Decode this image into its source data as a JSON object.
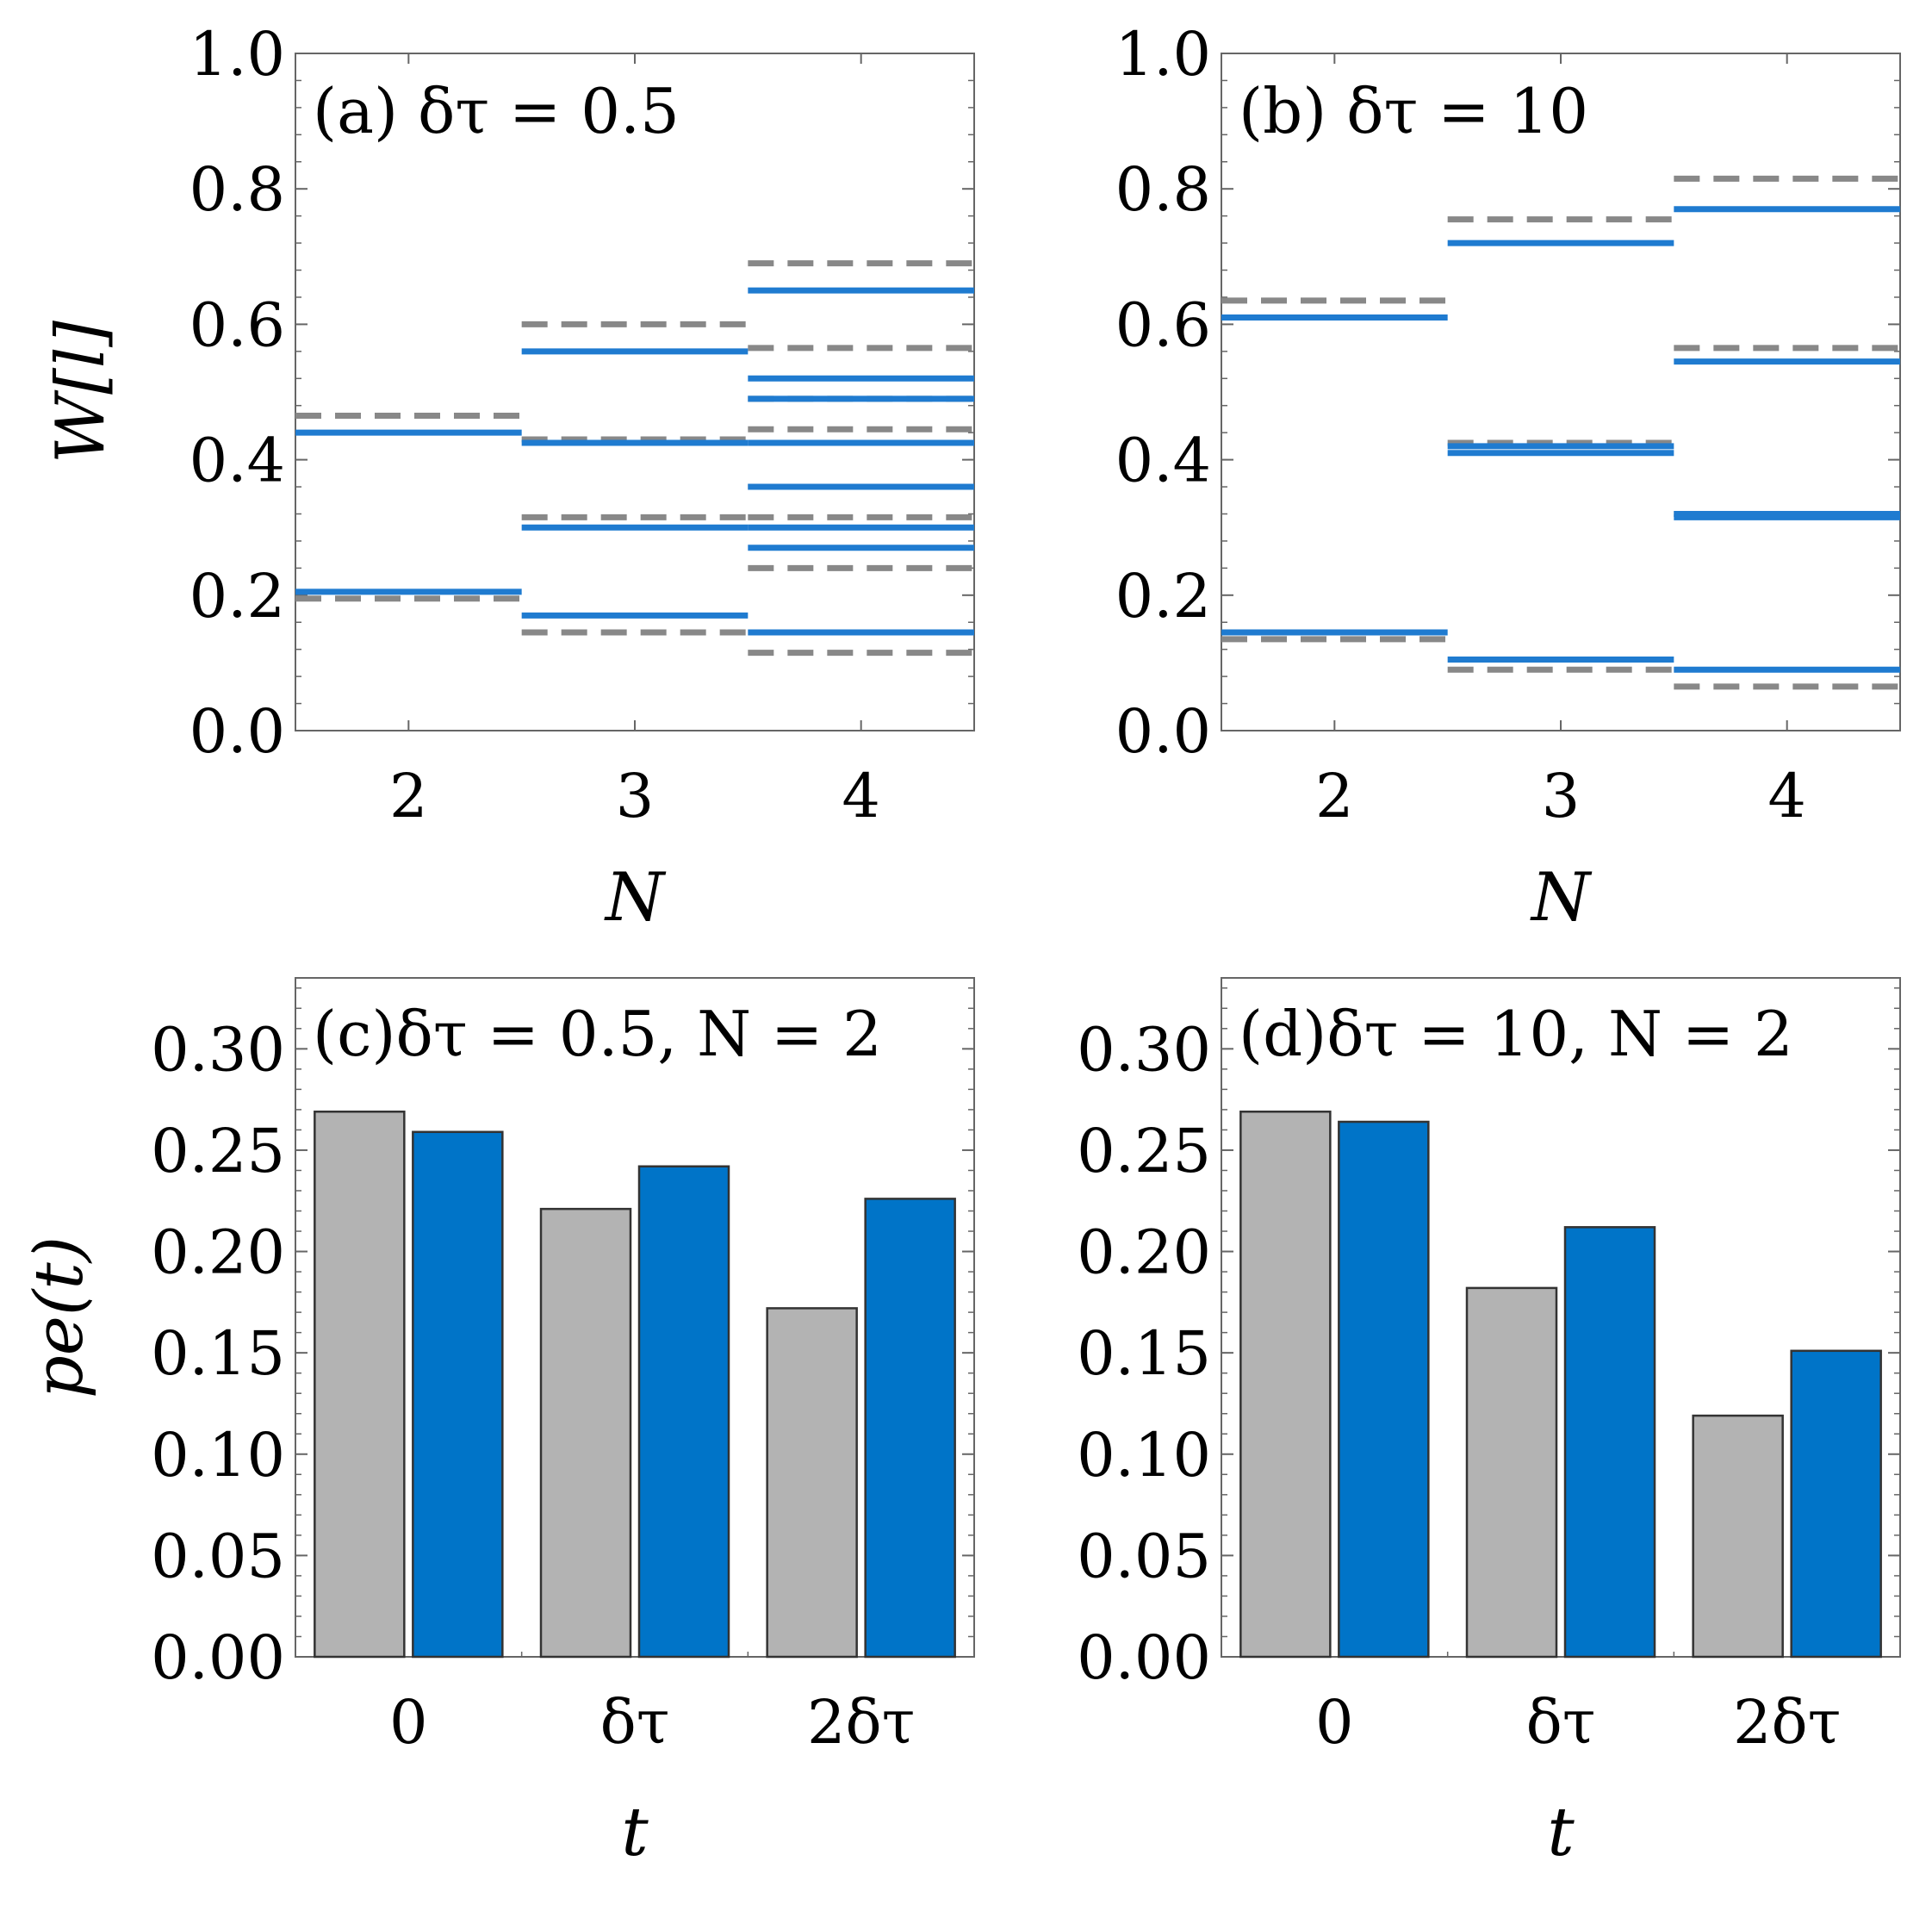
{
  "figure": {
    "background": "#ffffff",
    "colors": {
      "blue": "#1f7bd0",
      "gray_dashed": "#888888",
      "bar_gray": "#b3b3b3",
      "bar_blue": "#0074c8",
      "frame": "#666666"
    }
  },
  "chart_data": [
    {
      "id": "a",
      "type": "line",
      "title": "(a) δτ = 0.5",
      "xlabel": "N",
      "ylabel": "W[l]",
      "ylim": [
        0,
        1.0
      ],
      "yticks": [
        "0.0",
        "0.2",
        "0.4",
        "0.6",
        "0.8",
        "1.0"
      ],
      "categories": [
        "2",
        "3",
        "4"
      ],
      "series": [
        {
          "name": "solid",
          "style": "solid",
          "groups": [
            [
              0.205,
              0.44
            ],
            [
              0.17,
              0.3,
              0.425,
              0.56
            ],
            [
              0.145,
              0.27,
              0.3,
              0.36,
              0.425,
              0.49,
              0.52,
              0.65
            ]
          ]
        },
        {
          "name": "dashed",
          "style": "dashed",
          "groups": [
            [
              0.195,
              0.465
            ],
            [
              0.145,
              0.315,
              0.43,
              0.6
            ],
            [
              0.115,
              0.24,
              0.315,
              0.36,
              0.445,
              0.49,
              0.565,
              0.69
            ]
          ]
        }
      ]
    },
    {
      "id": "b",
      "type": "line",
      "title": "(b) δτ = 10",
      "xlabel": "N",
      "ylabel": "",
      "ylim": [
        0,
        1.0
      ],
      "yticks": [
        "0.0",
        "0.2",
        "0.4",
        "0.6",
        "0.8",
        "1.0"
      ],
      "categories": [
        "2",
        "3",
        "4"
      ],
      "series": [
        {
          "name": "solid",
          "style": "solid",
          "groups": [
            [
              0.145,
              0.61
            ],
            [
              0.105,
              0.41,
              0.42,
              0.72
            ],
            [
              0.09,
              0.315,
              0.32,
              0.545,
              0.77
            ]
          ]
        },
        {
          "name": "dashed",
          "style": "dashed",
          "groups": [
            [
              0.135,
              0.635
            ],
            [
              0.09,
              0.425,
              0.755
            ],
            [
              0.065,
              0.32,
              0.565,
              0.815
            ]
          ]
        }
      ]
    },
    {
      "id": "c",
      "type": "bar",
      "title": "(c)δτ = 0.5,  N = 2",
      "xlabel": "t",
      "ylabel": "pe(t)",
      "ylim": [
        0,
        0.335
      ],
      "yticks": [
        "0.00",
        "0.05",
        "0.10",
        "0.15",
        "0.20",
        "0.25",
        "0.30"
      ],
      "categories": [
        "0",
        "δτ",
        "2δτ"
      ],
      "series": [
        {
          "name": "gray",
          "values": [
            0.269,
            0.221,
            0.172
          ]
        },
        {
          "name": "blue",
          "values": [
            0.259,
            0.242,
            0.226
          ]
        }
      ]
    },
    {
      "id": "d",
      "type": "bar",
      "title": "(d)δτ = 10,  N = 2",
      "xlabel": "t",
      "ylabel": "",
      "ylim": [
        0,
        0.335
      ],
      "yticks": [
        "0.00",
        "0.05",
        "0.10",
        "0.15",
        "0.20",
        "0.25",
        "0.30"
      ],
      "categories": [
        "0",
        "δτ",
        "2δτ"
      ],
      "series": [
        {
          "name": "gray",
          "values": [
            0.269,
            0.182,
            0.119
          ]
        },
        {
          "name": "blue",
          "values": [
            0.264,
            0.212,
            0.151
          ]
        }
      ]
    }
  ]
}
